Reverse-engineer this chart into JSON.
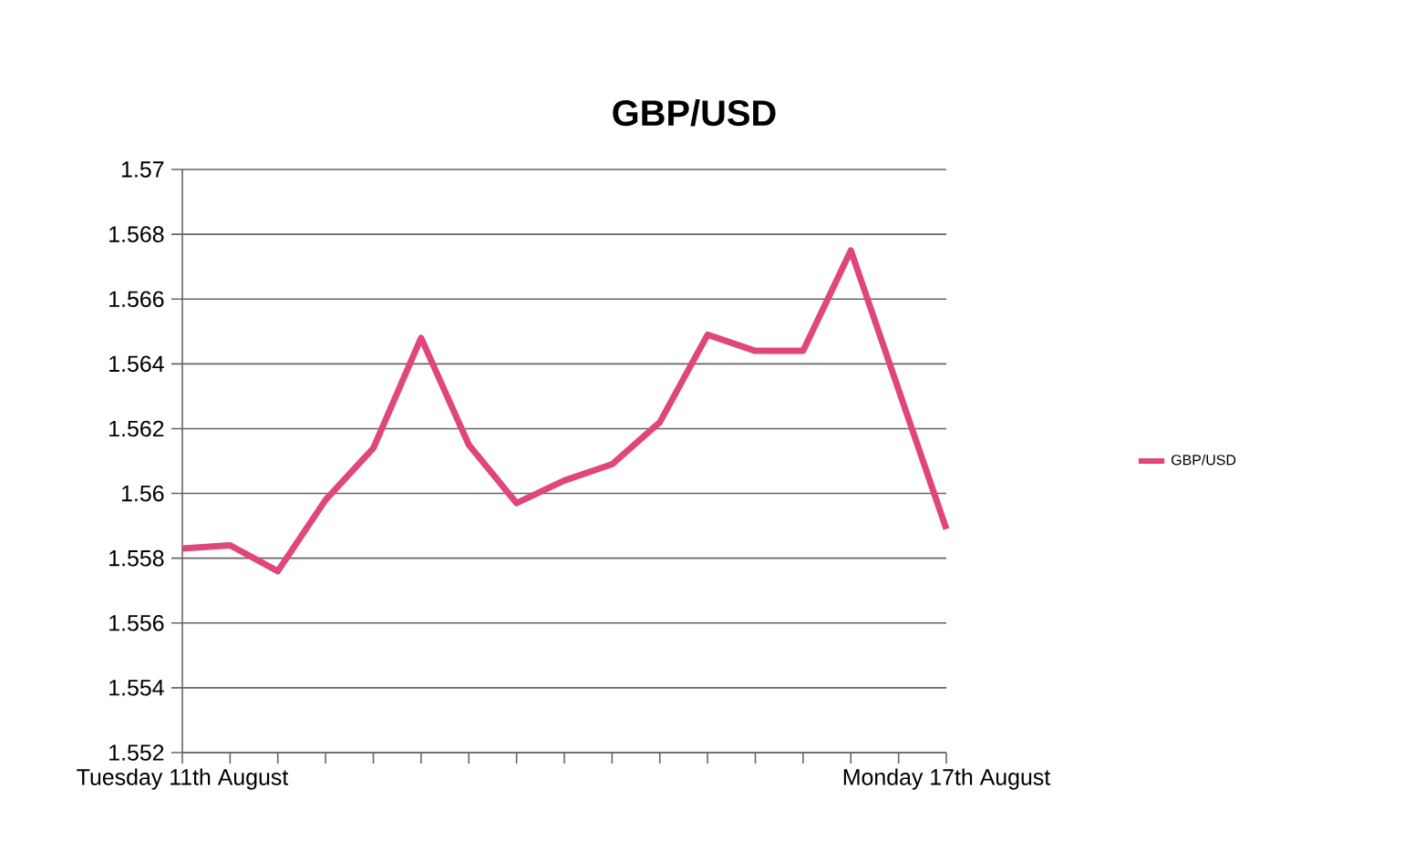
{
  "chart_data": {
    "type": "line",
    "title": "GBP/USD",
    "categories": [
      "Tuesday 11th August",
      null,
      null,
      null,
      null,
      null,
      null,
      null,
      null,
      null,
      null,
      null,
      null,
      null,
      null,
      null,
      "Monday 17th August"
    ],
    "series": [
      {
        "name": "GBP/USD",
        "color": "#e0457b",
        "values": [
          1.5583,
          1.5584,
          1.5576,
          1.5598,
          1.5614,
          1.5648,
          1.5615,
          1.5597,
          1.5604,
          1.5609,
          1.5622,
          1.5649,
          1.5644,
          1.5644,
          1.5675,
          1.5632,
          1.5589
        ]
      }
    ],
    "ylim": [
      1.552,
      1.57
    ],
    "yticks": [
      1.552,
      1.554,
      1.556,
      1.558,
      1.56,
      1.562,
      1.564,
      1.566,
      1.568,
      1.57
    ],
    "grid": "y",
    "legend": "right",
    "line_style": "solid"
  }
}
